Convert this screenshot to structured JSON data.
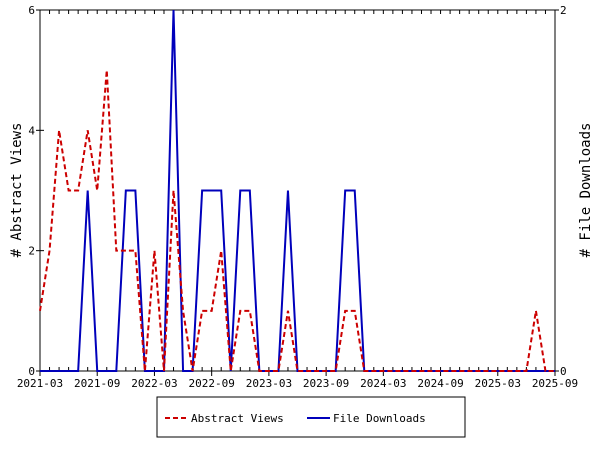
{
  "chart_data": {
    "type": "line",
    "title": "",
    "x": [
      "2021-03",
      "2021-04",
      "2021-05",
      "2021-06",
      "2021-07",
      "2021-08",
      "2021-09",
      "2021-10",
      "2021-11",
      "2021-12",
      "2022-01",
      "2022-02",
      "2022-03",
      "2022-04",
      "2022-05",
      "2022-06",
      "2022-07",
      "2022-08",
      "2022-09",
      "2022-10",
      "2022-11",
      "2022-12",
      "2023-01",
      "2023-02",
      "2023-03",
      "2023-04",
      "2023-05",
      "2023-06",
      "2023-07",
      "2023-08",
      "2023-09",
      "2023-10",
      "2023-11",
      "2023-12",
      "2024-01",
      "2024-02",
      "2024-03",
      "2024-04",
      "2024-05",
      "2024-06",
      "2024-07",
      "2024-08",
      "2024-09",
      "2024-10",
      "2024-11",
      "2024-12",
      "2025-01",
      "2025-02",
      "2025-03",
      "2025-04",
      "2025-05",
      "2025-06",
      "2025-07",
      "2025-08",
      "2025-09"
    ],
    "xticks": [
      "2021-03",
      "2021-09",
      "2022-03",
      "2022-09",
      "2023-03",
      "2023-09",
      "2024-03",
      "2024-09",
      "2025-03",
      "2025-09"
    ],
    "ylabel": "# Abstract Views",
    "y2label": "# File Downloads",
    "ylim": [
      0,
      6
    ],
    "y2lim": [
      0,
      2
    ],
    "yticks": [
      0,
      2,
      4,
      6
    ],
    "y2ticks": [
      0,
      2
    ],
    "legend_position": "bottom",
    "series": [
      {
        "name": "Abstract Views",
        "axis": "left",
        "color": "#cc0000",
        "style": "dashed",
        "values": [
          1,
          2,
          4,
          3,
          3,
          4,
          3,
          5,
          2,
          2,
          2,
          0,
          2,
          0,
          3,
          1,
          0,
          1,
          1,
          2,
          0,
          1,
          1,
          0,
          0,
          0,
          1,
          0,
          0,
          0,
          0,
          0,
          1,
          1,
          0,
          0,
          0,
          0,
          0,
          0,
          0,
          0,
          0,
          0,
          0,
          0,
          0,
          0,
          0,
          0,
          0,
          0,
          1,
          0,
          0
        ]
      },
      {
        "name": "File Downloads",
        "axis": "right",
        "color": "#0000bb",
        "style": "solid",
        "values": [
          0,
          0,
          0,
          0,
          0,
          1,
          0,
          0,
          0,
          1,
          1,
          0,
          0,
          0,
          2,
          0,
          0,
          1,
          1,
          1,
          0,
          1,
          1,
          0,
          0,
          0,
          1,
          0,
          0,
          0,
          0,
          0,
          1,
          1,
          0,
          0,
          0,
          0,
          0,
          0,
          0,
          0,
          0,
          0,
          0,
          0,
          0,
          0,
          0,
          0,
          0,
          0,
          0,
          0,
          0
        ]
      }
    ]
  }
}
